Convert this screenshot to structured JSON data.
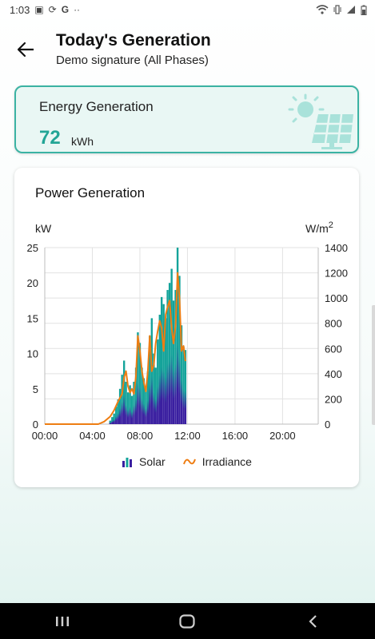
{
  "status_bar": {
    "time": "1:03",
    "left_icons": [
      "image-icon",
      "sync-icon",
      "google-icon",
      "more-dots-icon"
    ],
    "right_icons": [
      "wifi-icon",
      "vibrate-icon",
      "signal-icon",
      "battery-icon"
    ]
  },
  "header": {
    "title": "Today's Generation",
    "subtitle": "Demo signature (All Phases)"
  },
  "energy_card": {
    "label": "Energy Generation",
    "value": "72",
    "unit": "kWh",
    "icon": "solar-panel-sun-icon"
  },
  "chart_card": {
    "title": "Power Generation"
  },
  "chart_data": {
    "type": "bar",
    "xlabel": "",
    "ylabel": "kW",
    "y2label": "W/m2",
    "ylim": [
      0,
      25
    ],
    "y2lim": [
      0,
      1400
    ],
    "yticks": [
      "0",
      "5",
      "10",
      "15",
      "20",
      "25"
    ],
    "y2ticks": [
      "0",
      "200",
      "400",
      "600",
      "800",
      "1000",
      "1200",
      "1400"
    ],
    "xticks": [
      "00:00",
      "04:00",
      "08:00",
      "12:00",
      "16:00",
      "20:00"
    ],
    "x_range_hours": [
      0,
      23
    ],
    "grid": true,
    "legend": "bottom",
    "colors": {
      "solar_top": "#14a39a",
      "solar_bottom": "#3a1fa0",
      "irradiance": "#ee7d12"
    },
    "series": [
      {
        "name": "Solar",
        "type": "bar",
        "axis": "left",
        "x": [
          5.5,
          5.67,
          5.83,
          6.0,
          6.17,
          6.33,
          6.5,
          6.67,
          6.83,
          7.0,
          7.17,
          7.33,
          7.5,
          7.67,
          7.83,
          8.0,
          8.17,
          8.33,
          8.5,
          8.67,
          8.83,
          9.0,
          9.17,
          9.33,
          9.5,
          9.67,
          9.83,
          10.0,
          10.17,
          10.33,
          10.5,
          10.67,
          10.83,
          11.0,
          11.17,
          11.33,
          11.5,
          11.67,
          11.83
        ],
        "values": [
          0.5,
          1.0,
          1.5,
          2.5,
          3.5,
          5.0,
          7.0,
          9.0,
          6.0,
          4.5,
          5.5,
          4.0,
          6.0,
          8.0,
          13.0,
          11.5,
          8.0,
          6.5,
          5.0,
          7.5,
          12.5,
          15.0,
          10.0,
          8.0,
          12.0,
          15.5,
          18.0,
          17.0,
          15.0,
          19.0,
          20.0,
          22.0,
          17.5,
          19.0,
          25.0,
          21.0,
          14.0,
          11.0,
          10.5
        ]
      },
      {
        "name": "Irradiance",
        "type": "line",
        "axis": "right",
        "x": [
          0,
          1,
          2,
          3,
          4,
          4.5,
          5,
          5.5,
          5.83,
          6.17,
          6.5,
          6.67,
          6.83,
          7.0,
          7.17,
          7.33,
          7.5,
          7.67,
          7.83,
          8.0,
          8.17,
          8.33,
          8.5,
          8.67,
          8.83,
          9.0,
          9.17,
          9.33,
          9.5,
          9.67,
          9.83,
          10.0,
          10.17,
          10.33,
          10.5,
          10.67,
          10.83,
          11.0,
          11.17,
          11.33,
          11.5,
          11.67,
          11.83
        ],
        "values": [
          0,
          0,
          0,
          0,
          0,
          0,
          20,
          60,
          110,
          180,
          240,
          370,
          420,
          300,
          250,
          280,
          240,
          380,
          700,
          580,
          420,
          330,
          260,
          420,
          700,
          420,
          470,
          640,
          740,
          820,
          760,
          580,
          870,
          930,
          980,
          760,
          640,
          780,
          1200,
          1000,
          580,
          620,
          500
        ]
      }
    ]
  },
  "navigation": {
    "recent_icon": "recent-apps-icon",
    "home_icon": "home-icon",
    "back_icon": "nav-back-icon"
  }
}
